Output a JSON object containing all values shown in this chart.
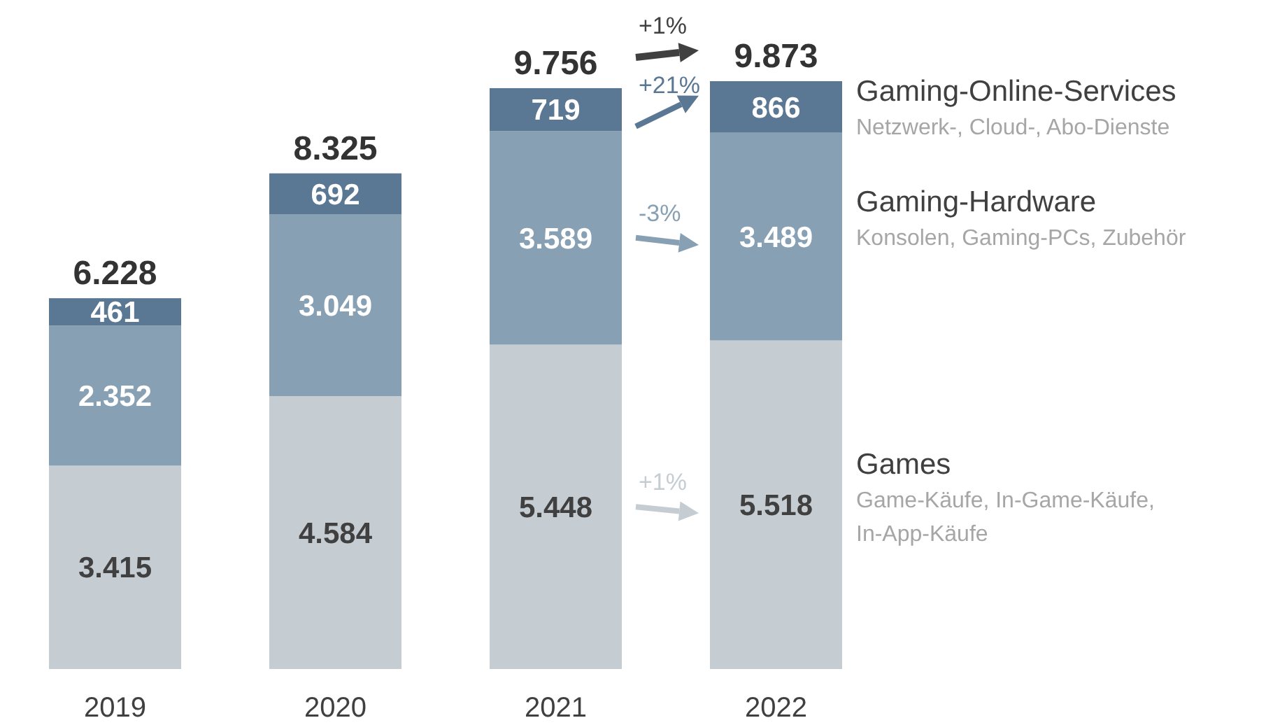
{
  "chart_data": {
    "type": "bar",
    "stacked": true,
    "categories": [
      "2019",
      "2020",
      "2021",
      "2022"
    ],
    "series": [
      {
        "name": "Games",
        "color": "#c5cdd3",
        "values": [
          3415,
          4584,
          5448,
          5518
        ],
        "value_labels": [
          "3.415",
          "4.584",
          "5.448",
          "5.518"
        ]
      },
      {
        "name": "Gaming-Hardware",
        "color": "#87a0b4",
        "values": [
          2352,
          3049,
          3589,
          3489
        ],
        "value_labels": [
          "2.352",
          "3.049",
          "3.589",
          "3.489"
        ]
      },
      {
        "name": "Gaming-Online-Services",
        "color": "#5a7893",
        "values": [
          461,
          692,
          719,
          866
        ],
        "value_labels": [
          "461",
          "692",
          "719",
          "866"
        ]
      }
    ],
    "totals": [
      "6.228",
      "8.325",
      "9.756",
      "9.873"
    ],
    "annotations": [
      "Game-Käufe, In-Game-Käufe, In-App-Käufe",
      "Konsolen, Gaming-PCs, Zubehör",
      "Netzwerk-, Cloud-, Abo-Dienste",
      "+1%",
      "+21%",
      "-3%",
      "+1%"
    ]
  }
}
